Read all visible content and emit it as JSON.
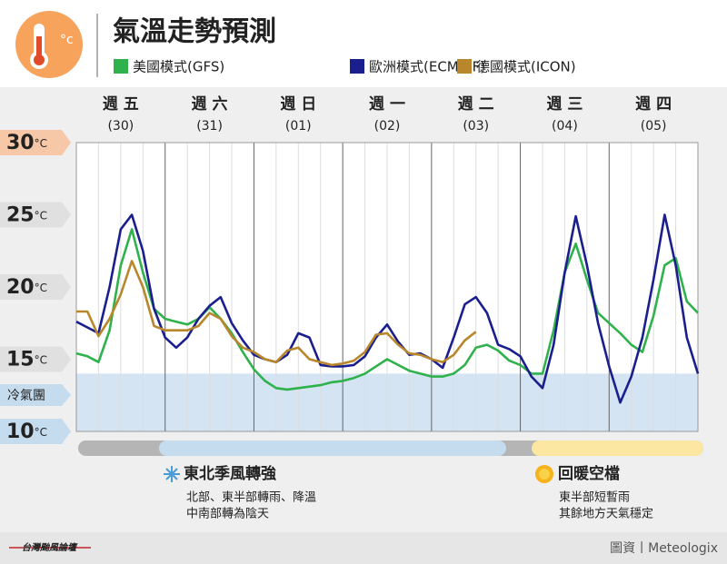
{
  "chart_data": {
    "type": "line",
    "title": "氣溫走勢預測",
    "y_unit": "°C",
    "days": [
      "週 五",
      "週 六",
      "週 日",
      "週 一",
      "週 二",
      "週 三",
      "週 四"
    ],
    "dates": [
      "(30)",
      "(31)",
      "(01)",
      "(02)",
      "(03)",
      "(04)",
      "(05)"
    ],
    "x": [
      0,
      3,
      6,
      9,
      12,
      15,
      18,
      21,
      24,
      27,
      30,
      33,
      36,
      39,
      42,
      45,
      48,
      51,
      54,
      57,
      60,
      63,
      66,
      69,
      72,
      75,
      78,
      81,
      84,
      87,
      90,
      93,
      96,
      99,
      102,
      105,
      108,
      111,
      114,
      117,
      120,
      123,
      126,
      129,
      132,
      135,
      138,
      141,
      144,
      147,
      150,
      153,
      156,
      159,
      162,
      165,
      168
    ],
    "xlim": [
      0,
      168
    ],
    "xticks": [
      0,
      24,
      48,
      72,
      96,
      120,
      144,
      168
    ],
    "ylim": [
      10,
      30
    ],
    "yticks": [
      10,
      15,
      20,
      25,
      30
    ],
    "grid": true,
    "cold_air": {
      "label": "冷氣團",
      "upper": 14
    },
    "series": [
      {
        "name": "美國模式(GFS)",
        "color": "#2fb24c",
        "values": [
          15.4,
          15.2,
          14.8,
          17.0,
          21.5,
          24.0,
          21.0,
          18.5,
          17.8,
          17.6,
          17.4,
          17.8,
          18.6,
          17.8,
          16.8,
          15.5,
          14.3,
          13.5,
          13.0,
          12.9,
          13.0,
          13.1,
          13.2,
          13.4,
          13.5,
          13.7,
          14.0,
          14.5,
          15.0,
          14.6,
          14.2,
          14.0,
          13.8,
          13.8,
          14.0,
          14.6,
          15.8,
          16.0,
          15.6,
          14.9,
          14.6,
          14.0,
          14.0,
          17.0,
          21.0,
          23.0,
          20.5,
          18.2,
          17.5,
          16.8,
          16.0,
          15.5,
          18.0,
          21.5,
          22.0,
          19.0,
          18.2
        ]
      },
      {
        "name": "歐洲模式(ECMWF)",
        "color": "#1b1f8e",
        "values": [
          17.6,
          17.2,
          16.8,
          20.0,
          24.0,
          25.0,
          22.5,
          18.5,
          16.5,
          15.8,
          16.5,
          17.8,
          18.7,
          19.3,
          17.5,
          16.3,
          15.3,
          15.0,
          14.8,
          15.3,
          16.8,
          16.5,
          14.6,
          14.5,
          14.5,
          14.6,
          15.2,
          16.5,
          17.4,
          16.2,
          15.3,
          15.4,
          15.0,
          14.4,
          16.5,
          18.8,
          19.3,
          18.2,
          16.0,
          15.7,
          15.2,
          13.8,
          13.0,
          16.0,
          21.0,
          24.9,
          21.5,
          17.5,
          14.5,
          12.0,
          13.8,
          16.5,
          20.5,
          25.0,
          21.5,
          16.5,
          14.0
        ]
      },
      {
        "name": "德國模式(ICON)",
        "color": "#b8872c",
        "values": [
          18.3,
          18.3,
          16.6,
          17.8,
          19.5,
          21.8,
          20.0,
          17.3,
          17.0,
          17.0,
          17.0,
          17.3,
          18.2,
          17.8,
          16.6,
          15.8,
          15.5,
          15.0,
          14.8,
          15.6,
          15.8,
          15.0,
          14.8,
          14.6,
          14.7,
          14.9,
          15.5,
          16.7,
          16.8,
          16.0,
          15.4,
          15.3,
          15.0,
          14.8,
          15.3,
          16.3,
          16.9,
          null,
          null,
          null,
          null,
          null,
          null,
          null,
          null,
          null,
          null,
          null,
          null,
          null,
          null,
          null,
          null,
          null,
          null,
          null,
          null
        ]
      }
    ]
  },
  "notes": [
    {
      "title": "東北季風轉強",
      "lines": [
        "北部、東半部轉雨、降溫",
        "中南部轉為陰天"
      ]
    },
    {
      "title": "回暖空檔",
      "lines": [
        "東半部短暫雨",
        "其餘地方天氣穩定"
      ]
    }
  ],
  "footer": {
    "logo": "台灣颱風論壇",
    "credit": "圖資丨Meteologix"
  }
}
